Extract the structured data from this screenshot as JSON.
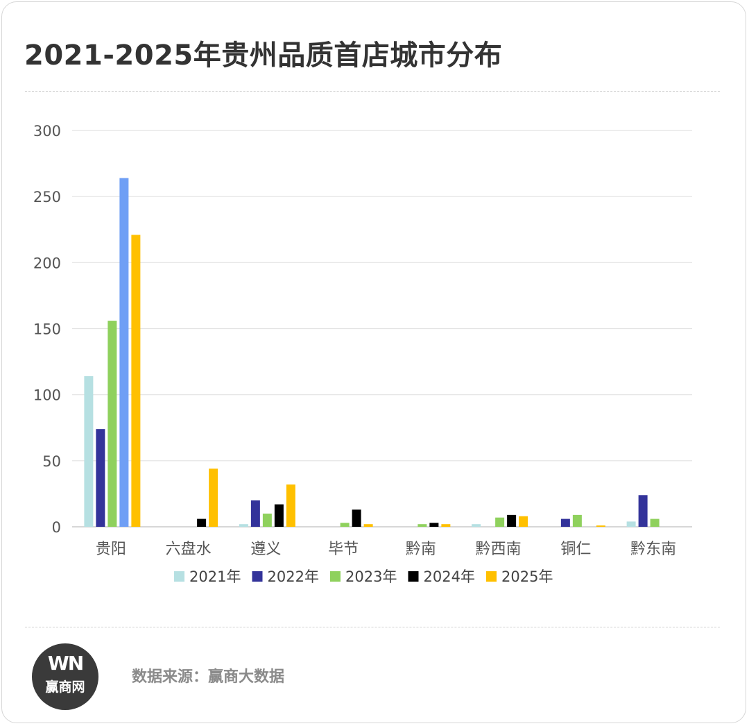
{
  "title": "2021-2025年贵州品质首店城市分布",
  "footer": {
    "logo_mark": "WN",
    "logo_name": "赢商网",
    "source": "数据来源：赢商大数据"
  },
  "chart_data": {
    "type": "bar",
    "categories": [
      "贵阳",
      "六盘水",
      "遵义",
      "毕节",
      "黔南",
      "黔西南",
      "铜仁",
      "黔东南"
    ],
    "series": [
      {
        "name": "2021年",
        "color": "#b6e0e2",
        "values": [
          114,
          0,
          2,
          0,
          0,
          2,
          0,
          4
        ]
      },
      {
        "name": "2022年",
        "color": "#33339a",
        "values": [
          74,
          0,
          20,
          0,
          0,
          0,
          6,
          24
        ]
      },
      {
        "name": "2023年",
        "color": "#8fd15d",
        "values": [
          156,
          0,
          10,
          3,
          2,
          7,
          9,
          6
        ]
      },
      {
        "name": "2024年",
        "color": "#000000",
        "values": [
          264,
          6,
          17,
          13,
          3,
          9,
          0,
          0
        ]
      },
      {
        "name": "2025年",
        "color": "#ffc000",
        "values": [
          221,
          44,
          32,
          2,
          2,
          8,
          1,
          0
        ]
      }
    ],
    "highlight": {
      "series_index": 3,
      "category_index": 0,
      "color": "#6f9ff5"
    },
    "yticks": [
      0,
      50,
      100,
      150,
      200,
      250,
      300
    ],
    "ylim": [
      0,
      300
    ],
    "grid": true,
    "legend_position": "bottom"
  }
}
